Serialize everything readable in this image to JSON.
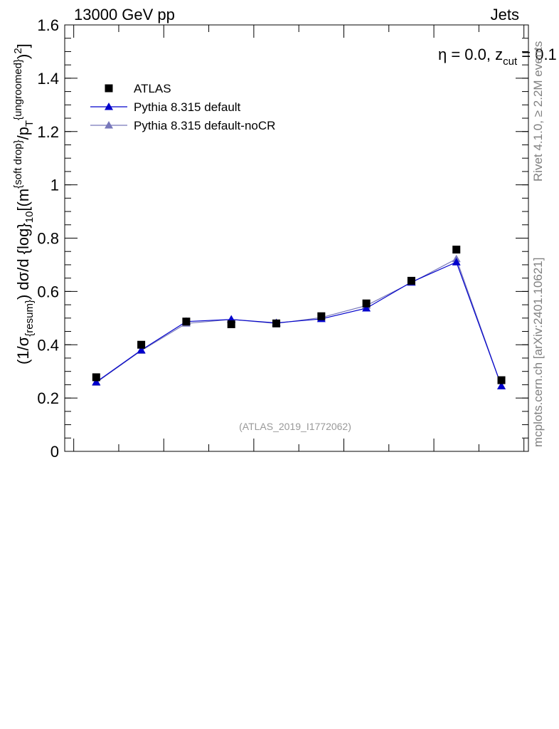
{
  "header": {
    "energy_label": "13000 GeV pp",
    "process_label": "Jets"
  },
  "annotation": {
    "eta_text": "η = 0.0, z",
    "zcut_sub": "cut",
    "zcut_rest": " = 0.1"
  },
  "side_labels": {
    "rivet": "Rivet 4.1.0, ≥ 2.2M events",
    "mcplots": "mcplots.cern.ch [arXiv:2401.10621]"
  },
  "analysis_id": "(ATLAS_2019_I1772062)",
  "colors": {
    "atlas": "#000000",
    "pythia_default": "#0000cc",
    "pythia_nocr": "#7777bb"
  },
  "chart_data": {
    "type": "line",
    "title": "",
    "ylabel": "(1/σ{resum}) dσ/d {log}10[(m{soft drop}/pT{ungroomed})2]",
    "ylabel_parts": {
      "prefix": "(1/σ",
      "sub1": "{resum}",
      "mid1": ") dσ/d {log}",
      "sub2": "10",
      "mid2": "[(m",
      "sup1": "{soft drop}",
      "mid3": "/p",
      "sub3": "T",
      "sup2": "{ungroomed}",
      "mid4": ")",
      "sup3": "2",
      "suffix": "]"
    },
    "xlabel": "",
    "ylim": [
      0,
      1.6
    ],
    "y_ticks": [
      "0",
      "0.2",
      "0.4",
      "0.6",
      "0.8",
      "1",
      "1.2",
      "1.4",
      "1.6"
    ],
    "y_tick_values": [
      0,
      0.2,
      0.4,
      0.6,
      0.8,
      1.0,
      1.2,
      1.4,
      1.6
    ],
    "bins": 10,
    "legend_position": "top-left",
    "series": [
      {
        "name": "ATLAS",
        "marker": "square",
        "values": [
          0.278,
          0.4,
          0.487,
          0.477,
          0.48,
          0.507,
          0.555,
          0.64,
          0.757,
          0.267
        ]
      },
      {
        "name": "Pythia 8.315 default",
        "marker": "triangle",
        "values": [
          0.26,
          0.38,
          0.487,
          0.495,
          0.482,
          0.497,
          0.537,
          0.635,
          0.71,
          0.245
        ]
      },
      {
        "name": "Pythia 8.315 default-noCR",
        "marker": "triangle",
        "values": [
          0.258,
          0.378,
          0.48,
          0.495,
          0.48,
          0.502,
          0.547,
          0.633,
          0.722,
          0.245
        ]
      }
    ]
  }
}
